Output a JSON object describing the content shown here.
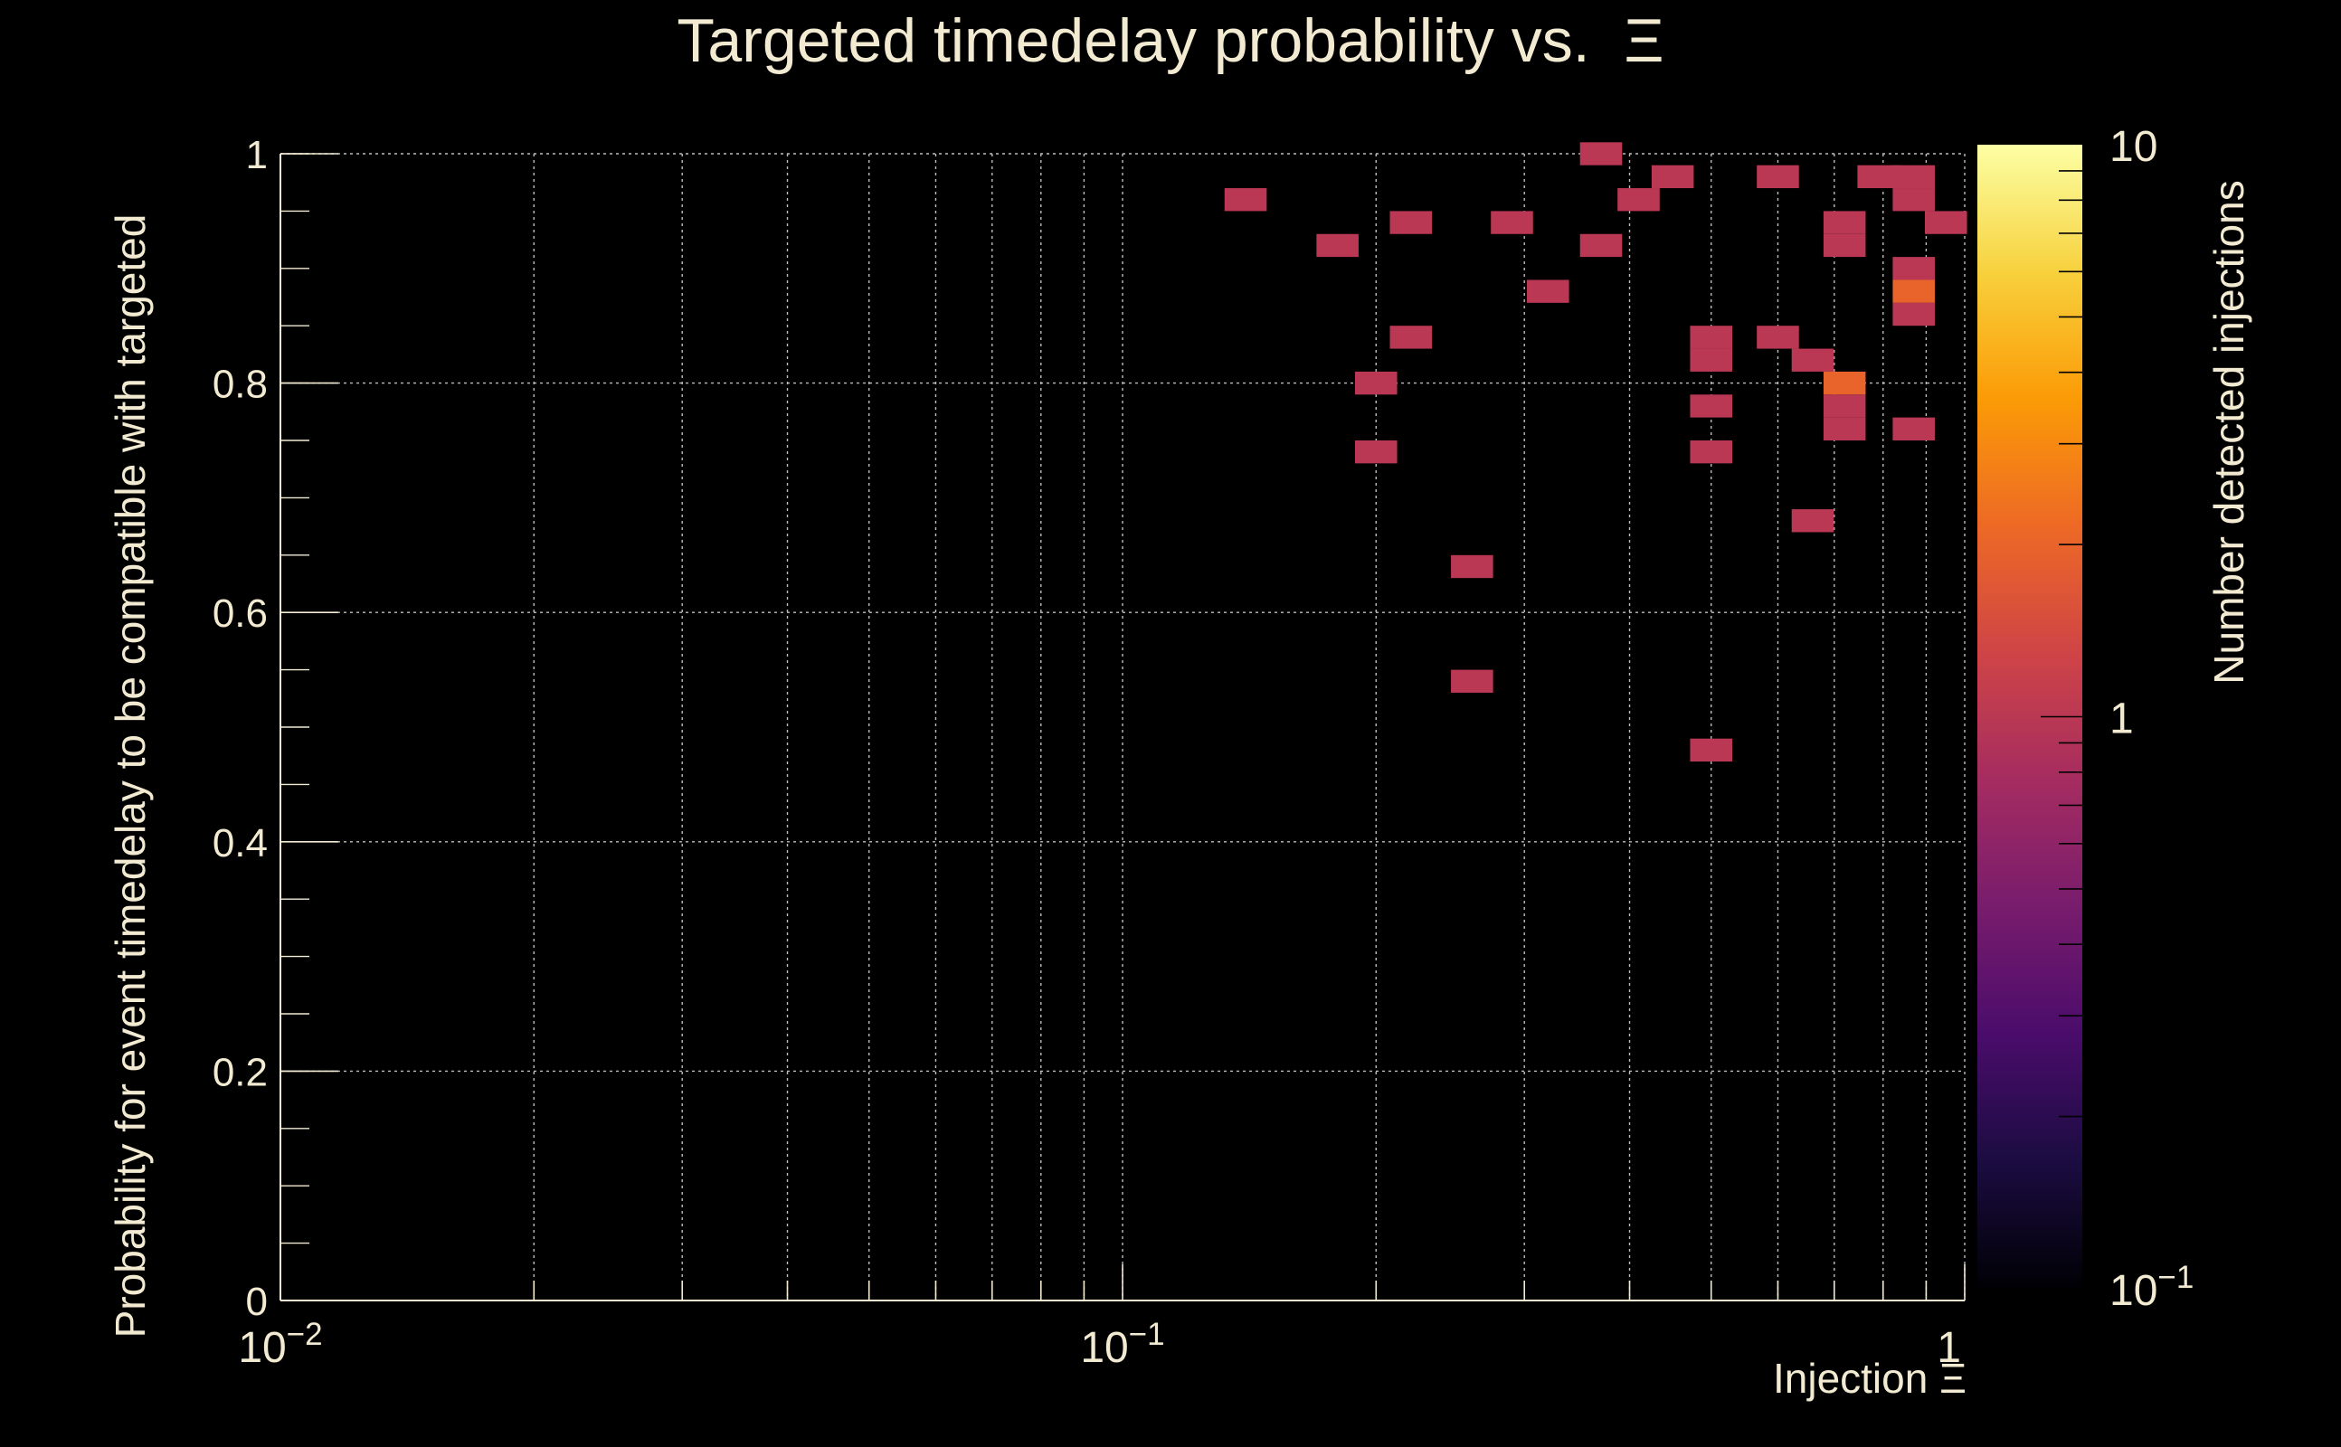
{
  "chart_data": {
    "type": "heatmap",
    "title": "Targeted timedelay probability vs.  Ξ",
    "xlabel": "Injection Ξ",
    "ylabel": "Probability for event timedelay to be compatible with targeted",
    "zlabel": "Number detected injections",
    "x_scale": "log",
    "z_scale": "log",
    "xlim": [
      0.01,
      1
    ],
    "ylim": [
      0,
      1
    ],
    "zlim": [
      0.1,
      10
    ],
    "grid": true,
    "x_ticks": [
      {
        "base": "10",
        "exp": "−2",
        "value": 0.01
      },
      {
        "base": "10",
        "exp": "−1",
        "value": 0.1
      },
      {
        "base": "1",
        "exp": "",
        "value": 1
      }
    ],
    "y_ticks": [
      "0",
      "0.2",
      "0.4",
      "0.6",
      "0.8",
      "1"
    ],
    "z_ticks": [
      {
        "base": "10",
        "exp": "−1",
        "value": 0.1
      },
      {
        "base": "1",
        "exp": "",
        "value": 1
      },
      {
        "base": "10",
        "exp": "",
        "value": 10
      }
    ],
    "colors": {
      "background": "#000000",
      "text": "#f3ead2",
      "grid": "#bdbdbd",
      "colormap": [
        "#000004",
        "#1b0c41",
        "#4a0c6b",
        "#781c6d",
        "#a52c60",
        "#cf4446",
        "#ed6925",
        "#fb9b06",
        "#f7d13d",
        "#fcffa4"
      ]
    },
    "bins": [
      {
        "x": 0.14,
        "y": 0.96,
        "z": 1
      },
      {
        "x": 0.18,
        "y": 0.92,
        "z": 1
      },
      {
        "x": 0.2,
        "y": 0.8,
        "z": 1
      },
      {
        "x": 0.2,
        "y": 0.74,
        "z": 1
      },
      {
        "x": 0.22,
        "y": 0.94,
        "z": 1
      },
      {
        "x": 0.22,
        "y": 0.84,
        "z": 1
      },
      {
        "x": 0.26,
        "y": 0.64,
        "z": 1
      },
      {
        "x": 0.26,
        "y": 0.54,
        "z": 1
      },
      {
        "x": 0.29,
        "y": 0.94,
        "z": 1
      },
      {
        "x": 0.32,
        "y": 0.88,
        "z": 1
      },
      {
        "x": 0.37,
        "y": 1.0,
        "z": 1
      },
      {
        "x": 0.37,
        "y": 0.92,
        "z": 1
      },
      {
        "x": 0.41,
        "y": 0.96,
        "z": 1
      },
      {
        "x": 0.45,
        "y": 0.98,
        "z": 1
      },
      {
        "x": 0.5,
        "y": 0.84,
        "z": 1
      },
      {
        "x": 0.5,
        "y": 0.82,
        "z": 1
      },
      {
        "x": 0.5,
        "y": 0.78,
        "z": 1
      },
      {
        "x": 0.5,
        "y": 0.74,
        "z": 1
      },
      {
        "x": 0.5,
        "y": 0.48,
        "z": 1
      },
      {
        "x": 0.6,
        "y": 0.98,
        "z": 1
      },
      {
        "x": 0.6,
        "y": 0.84,
        "z": 1
      },
      {
        "x": 0.66,
        "y": 0.82,
        "z": 1
      },
      {
        "x": 0.66,
        "y": 0.68,
        "z": 1
      },
      {
        "x": 0.72,
        "y": 0.94,
        "z": 1
      },
      {
        "x": 0.72,
        "y": 0.92,
        "z": 1
      },
      {
        "x": 0.72,
        "y": 0.8,
        "z": 2
      },
      {
        "x": 0.72,
        "y": 0.78,
        "z": 1
      },
      {
        "x": 0.72,
        "y": 0.76,
        "z": 1
      },
      {
        "x": 0.79,
        "y": 0.98,
        "z": 1
      },
      {
        "x": 0.87,
        "y": 0.98,
        "z": 1
      },
      {
        "x": 0.87,
        "y": 0.96,
        "z": 1
      },
      {
        "x": 0.87,
        "y": 0.9,
        "z": 1
      },
      {
        "x": 0.87,
        "y": 0.88,
        "z": 2
      },
      {
        "x": 0.87,
        "y": 0.86,
        "z": 1
      },
      {
        "x": 0.87,
        "y": 0.76,
        "z": 1
      },
      {
        "x": 0.95,
        "y": 0.94,
        "z": 1
      }
    ]
  }
}
